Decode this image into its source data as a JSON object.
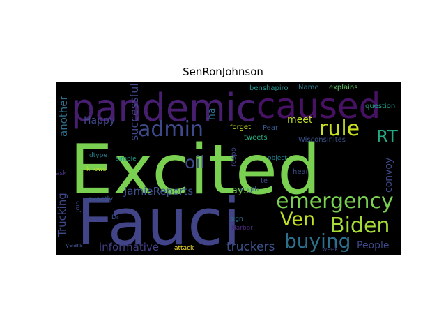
{
  "chart_data": {
    "type": "wordcloud",
    "title": "SenRonJohnson",
    "background": "#000000",
    "words": [
      {
        "text": "Excited",
        "color": "#7ad151"
      },
      {
        "text": "Fauci",
        "color": "#414487"
      },
      {
        "text": "pandemic",
        "color": "#481f70"
      },
      {
        "text": "caused",
        "color": "#471164"
      },
      {
        "text": "emergency",
        "color": "#7ad151"
      },
      {
        "text": "Biden",
        "color": "#a5db36"
      },
      {
        "text": "rule",
        "color": "#c8e020"
      },
      {
        "text": "admin",
        "color": "#3e4a89"
      },
      {
        "text": "buying",
        "color": "#2d708e"
      },
      {
        "text": "Ven",
        "color": "#c2df23"
      },
      {
        "text": "oil",
        "color": "#3e4c8a"
      },
      {
        "text": "RT",
        "color": "#22a884"
      },
      {
        "text": "truckers",
        "color": "#3b528b"
      },
      {
        "text": "successful",
        "color": "#3f4889"
      },
      {
        "text": "JamieReports",
        "color": "#3b528b"
      },
      {
        "text": "informative",
        "color": "#423f85"
      },
      {
        "text": "People",
        "color": "#3e4a89"
      },
      {
        "text": "another",
        "color": "#2e6f8e"
      },
      {
        "text": "Trucking",
        "color": "#3e4989"
      },
      {
        "text": "Happy",
        "color": "#3e4989"
      },
      {
        "text": "meet",
        "color": "#c0df25"
      },
      {
        "text": "says",
        "color": "#7ad151"
      },
      {
        "text": "convoy",
        "color": "#3e4989"
      },
      {
        "text": "ha",
        "color": "#2c728e"
      },
      {
        "text": "benshapiro",
        "color": "#21918c"
      },
      {
        "text": "Name",
        "color": "#2a788e"
      },
      {
        "text": "explains",
        "color": "#5ec962"
      },
      {
        "text": "forget",
        "color": "#cae11f"
      },
      {
        "text": "Pearl",
        "color": "#375b8d"
      },
      {
        "text": "tweets",
        "color": "#2ab07f"
      },
      {
        "text": "question",
        "color": "#1f9e89"
      },
      {
        "text": "Wisconsinites",
        "color": "#3b528b"
      },
      {
        "text": "simple",
        "color": "#1f9a8a"
      },
      {
        "text": "dtype",
        "color": "#26828e"
      },
      {
        "text": "object",
        "color": "#26828e"
      },
      {
        "text": "respo",
        "color": "#404688"
      },
      {
        "text": "hear",
        "color": "#3b528b"
      },
      {
        "text": "knows",
        "color": "#c2df23"
      },
      {
        "text": "ask",
        "color": "#46327e"
      },
      {
        "text": "join",
        "color": "#3e4989"
      },
      {
        "text": "exactly",
        "color": "#38588c"
      },
      {
        "text": "te",
        "color": "#3e4a89"
      },
      {
        "text": "Length",
        "color": "#38588c"
      },
      {
        "text": "Dr",
        "color": "#3b528b"
      },
      {
        "text": "sign",
        "color": "#2e6e8e"
      },
      {
        "text": "Harbor",
        "color": "#482878"
      },
      {
        "text": "years",
        "color": "#3b528b"
      },
      {
        "text": "attack",
        "color": "#fde725"
      },
      {
        "text": "week",
        "color": "#3e4a89"
      }
    ]
  }
}
